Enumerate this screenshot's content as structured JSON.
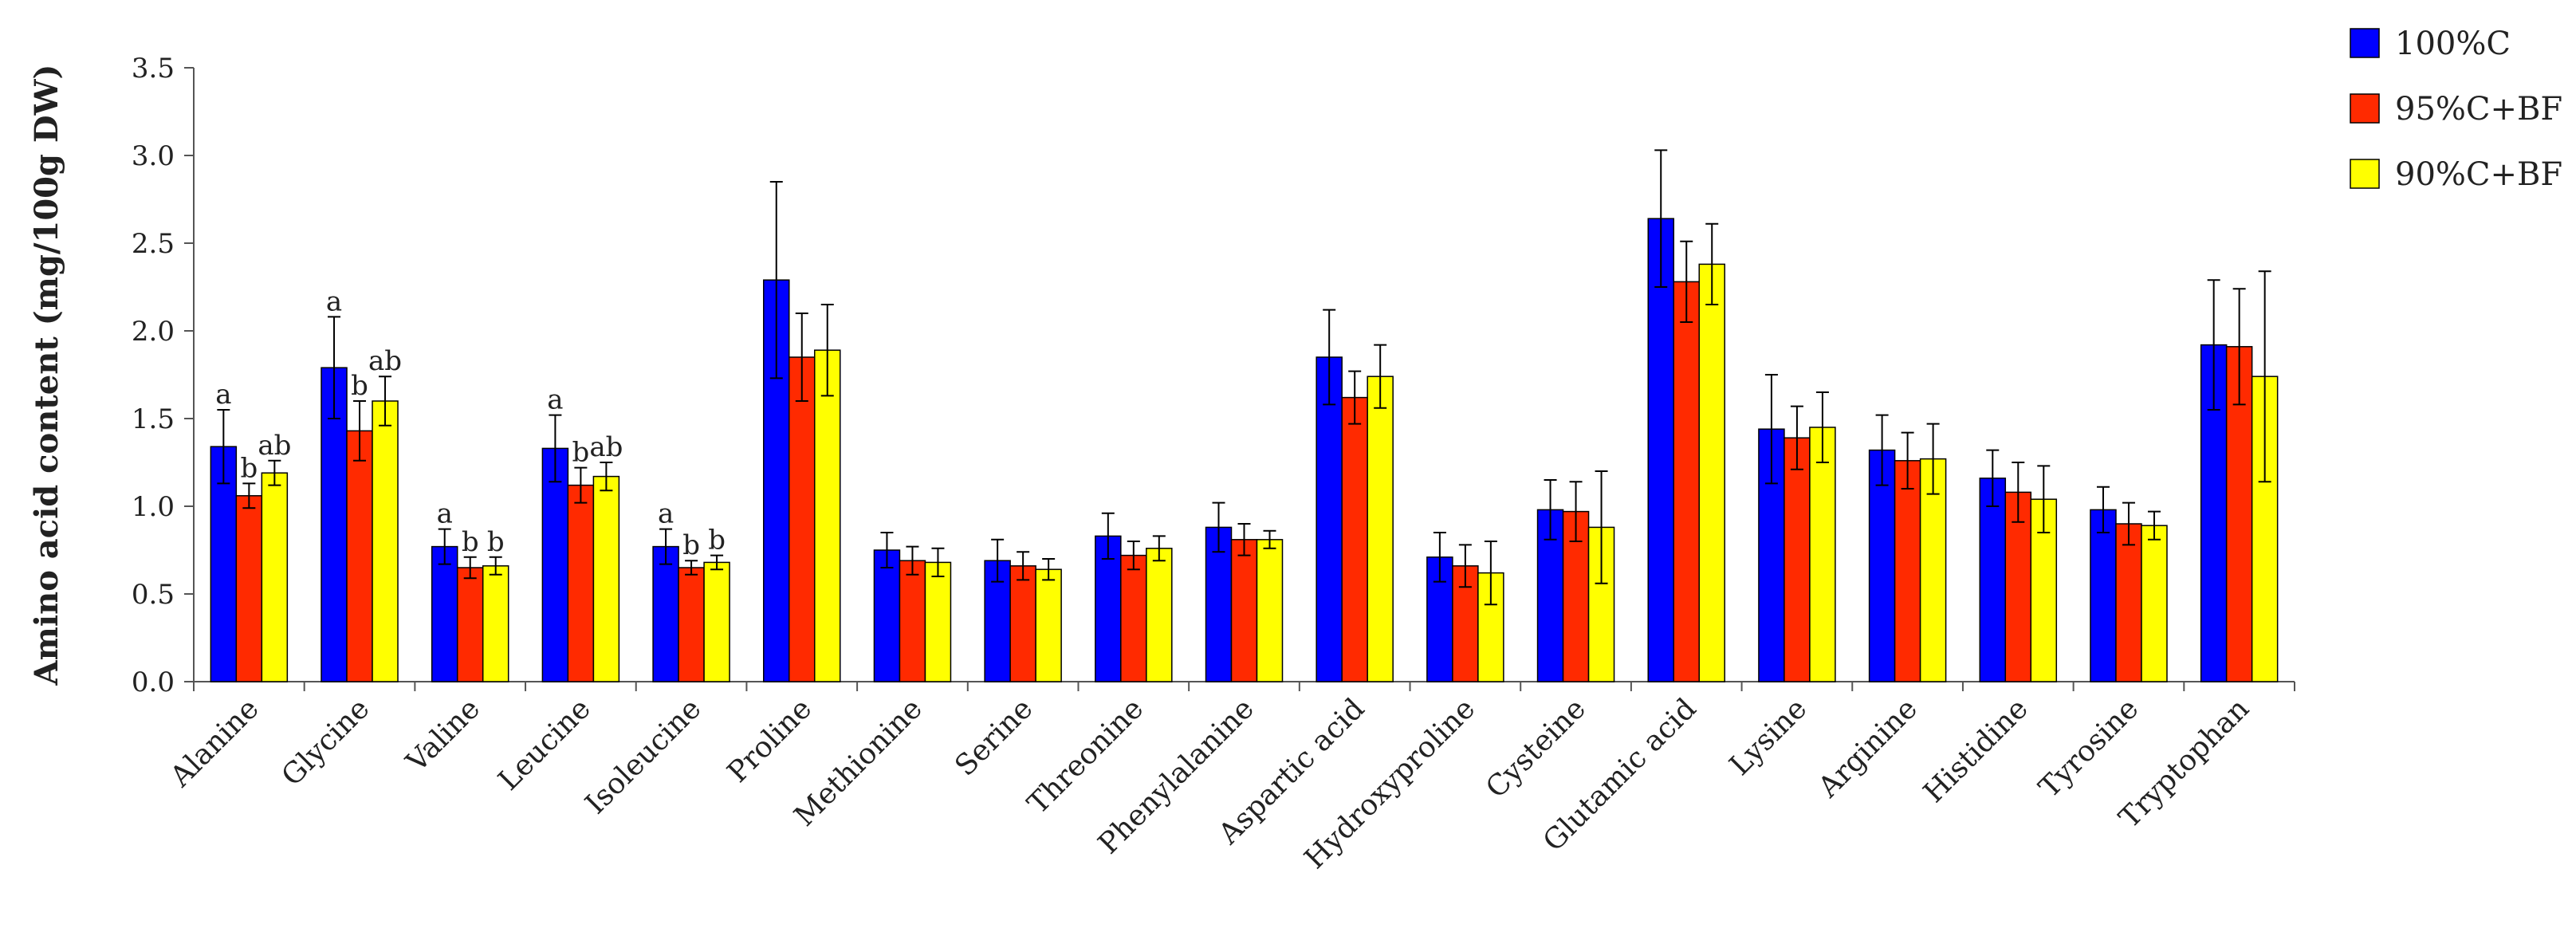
{
  "chart_data": {
    "type": "bar",
    "title": "",
    "xlabel": "",
    "ylabel": "Amino acid content (mg/100g DW)",
    "ylim": [
      0,
      3.5
    ],
    "ytick_step": 0.5,
    "yticks": [
      "0.0",
      "0.5",
      "1.0",
      "1.5",
      "2.0",
      "2.5",
      "3.0",
      "3.5"
    ],
    "grid": false,
    "legend_position": "top-right",
    "categories": [
      "Alanine",
      "Glycine",
      "Valine",
      "Leucine",
      "Isoleucine",
      "Proline",
      "Methionine",
      "Serine",
      "Threonine",
      "Phenylalanine",
      "Aspartic acid",
      "Hydroxyproline",
      "Cysteine",
      "Glutamic acid",
      "Lysine",
      "Arginine",
      "Histidine",
      "Tyrosine",
      "Tryptophan"
    ],
    "series": [
      {
        "name": "100%C",
        "color": "#0000ff",
        "values": [
          1.34,
          1.79,
          0.77,
          1.33,
          0.77,
          2.29,
          0.75,
          0.69,
          0.83,
          0.88,
          1.85,
          0.71,
          0.98,
          2.64,
          1.44,
          1.32,
          1.16,
          0.98,
          1.92
        ],
        "errors": [
          0.21,
          0.29,
          0.1,
          0.19,
          0.1,
          0.56,
          0.1,
          0.12,
          0.13,
          0.14,
          0.27,
          0.14,
          0.17,
          0.39,
          0.31,
          0.2,
          0.16,
          0.13,
          0.37
        ],
        "labels": [
          "a",
          "a",
          "a",
          "a",
          "a",
          "",
          "",
          "",
          "",
          "",
          "",
          "",
          "",
          "",
          "",
          "",
          "",
          "",
          ""
        ]
      },
      {
        "name": "95%C+BF",
        "color": "#ff2a00",
        "values": [
          1.06,
          1.43,
          0.65,
          1.12,
          0.65,
          1.85,
          0.69,
          0.66,
          0.72,
          0.81,
          1.62,
          0.66,
          0.97,
          2.28,
          1.39,
          1.26,
          1.08,
          0.9,
          1.91
        ],
        "errors": [
          0.07,
          0.17,
          0.06,
          0.1,
          0.04,
          0.25,
          0.08,
          0.08,
          0.08,
          0.09,
          0.15,
          0.12,
          0.17,
          0.23,
          0.18,
          0.16,
          0.17,
          0.12,
          0.33
        ],
        "labels": [
          "b",
          "b",
          "b",
          "b",
          "b",
          "",
          "",
          "",
          "",
          "",
          "",
          "",
          "",
          "",
          "",
          "",
          "",
          "",
          ""
        ]
      },
      {
        "name": "90%C+BF",
        "color": "#ffff00",
        "values": [
          1.19,
          1.6,
          0.66,
          1.17,
          0.68,
          1.89,
          0.68,
          0.64,
          0.76,
          0.81,
          1.74,
          0.62,
          0.88,
          2.38,
          1.45,
          1.27,
          1.04,
          0.89,
          1.74
        ],
        "errors": [
          0.07,
          0.14,
          0.05,
          0.08,
          0.04,
          0.26,
          0.08,
          0.06,
          0.07,
          0.05,
          0.18,
          0.18,
          0.32,
          0.23,
          0.2,
          0.2,
          0.19,
          0.08,
          0.6
        ],
        "labels": [
          "ab",
          "ab",
          "b",
          "ab",
          "b",
          "",
          "",
          "",
          "",
          "",
          "",
          "",
          "",
          "",
          "",
          "",
          "",
          "",
          ""
        ]
      }
    ]
  }
}
